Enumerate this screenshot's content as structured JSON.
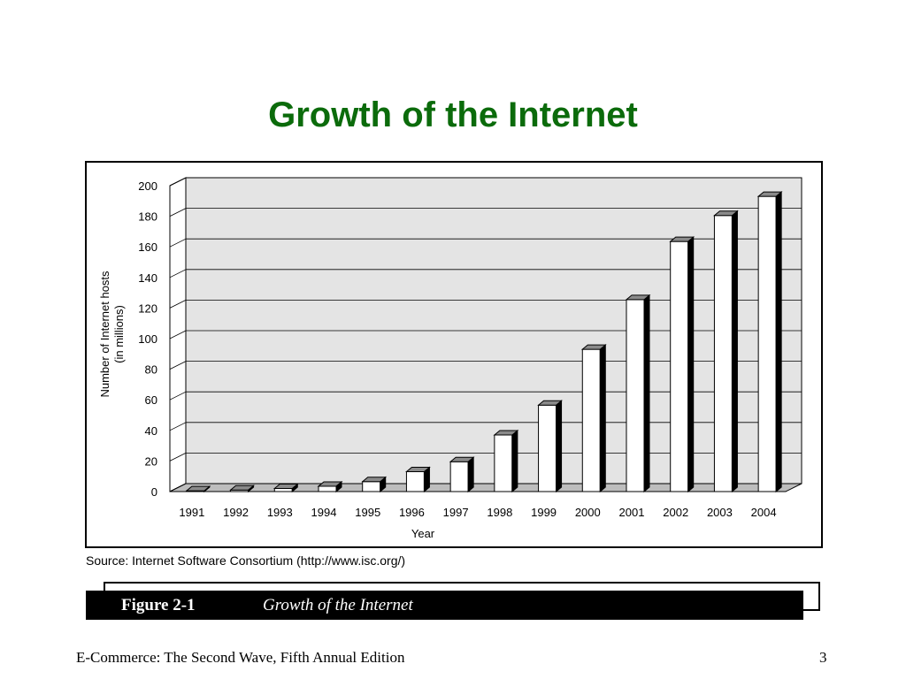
{
  "slide": {
    "title": "Growth of the Internet",
    "source": "Source: Internet Software Consortium (http://www.isc.org/)",
    "figure_label": "Figure 2-1",
    "figure_caption": "Growth of the Internet",
    "footer": "E-Commerce: The Second Wave, Fifth Annual Edition",
    "page_number": "3",
    "title_color": "#0b6b0b"
  },
  "chart_data": {
    "type": "bar",
    "categories": [
      "1991",
      "1992",
      "1993",
      "1994",
      "1995",
      "1996",
      "1997",
      "1998",
      "1999",
      "2000",
      "2001",
      "2002",
      "2003",
      "2004"
    ],
    "values": [
      0.5,
      1,
      2,
      3.5,
      6.5,
      13,
      19.5,
      37,
      56.5,
      93,
      125.5,
      163.5,
      180.5,
      193
    ],
    "xlabel": "Year",
    "ylabel": "Number of Internet hosts",
    "ylabel2": "(in millions)",
    "ylim": [
      0,
      200
    ],
    "yticks": [
      0,
      20,
      40,
      60,
      80,
      100,
      120,
      140,
      160,
      180,
      200
    ],
    "grid": true,
    "legend": "none",
    "style": "3d"
  }
}
